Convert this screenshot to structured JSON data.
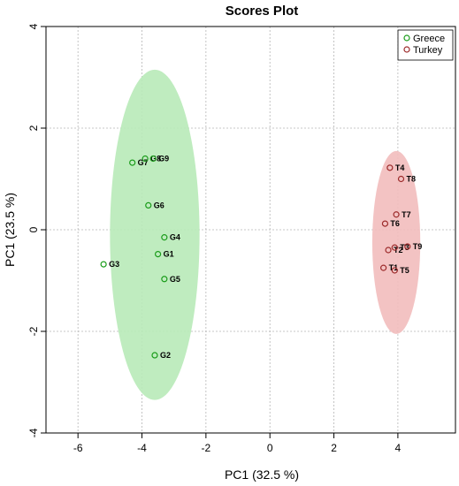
{
  "chart_data": {
    "type": "scatter",
    "title": "Scores Plot",
    "xlabel": "PC1 (32.5 %)",
    "ylabel": "PC1 (23.5 %)",
    "xlim": [
      -7,
      5.8
    ],
    "ylim": [
      -4,
      4
    ],
    "xticks": [
      -6,
      -4,
      -2,
      0,
      2,
      4
    ],
    "yticks": [
      -4,
      -2,
      0,
      2,
      4
    ],
    "grid": true,
    "legend": "top-right",
    "series": [
      {
        "name": "Greece",
        "color": "#1a9c1a",
        "ellipse_fill": "#b8eab8",
        "ellipse": {
          "cx": -3.6,
          "cy": -0.1,
          "rx": 1.4,
          "ry": 3.25
        },
        "points": [
          {
            "label": "G1",
            "x": -3.5,
            "y": -0.48
          },
          {
            "label": "G2",
            "x": -3.6,
            "y": -2.47
          },
          {
            "label": "G3",
            "x": -5.2,
            "y": -0.68
          },
          {
            "label": "G4",
            "x": -3.3,
            "y": -0.15
          },
          {
            "label": "G5",
            "x": -3.3,
            "y": -0.97
          },
          {
            "label": "G6",
            "x": -3.8,
            "y": 0.48
          },
          {
            "label": "G7",
            "x": -4.3,
            "y": 1.32
          },
          {
            "label": "G8",
            "x": -3.9,
            "y": 1.4
          },
          {
            "label": "G9",
            "x": -3.65,
            "y": 1.4
          }
        ]
      },
      {
        "name": "Turkey",
        "color": "#9c2a2a",
        "ellipse_fill": "#f2bcbc",
        "ellipse": {
          "cx": 3.95,
          "cy": -0.25,
          "rx": 0.75,
          "ry": 1.8
        },
        "points": [
          {
            "label": "T1",
            "x": 3.55,
            "y": -0.75
          },
          {
            "label": "T2",
            "x": 3.7,
            "y": -0.4
          },
          {
            "label": "T3",
            "x": 3.9,
            "y": -0.35
          },
          {
            "label": "T4",
            "x": 3.75,
            "y": 1.22
          },
          {
            "label": "T5",
            "x": 3.9,
            "y": -0.8
          },
          {
            "label": "T6",
            "x": 3.6,
            "y": 0.12
          },
          {
            "label": "T7",
            "x": 3.95,
            "y": 0.3
          },
          {
            "label": "T8",
            "x": 4.1,
            "y": 1.0
          },
          {
            "label": "T9",
            "x": 4.3,
            "y": -0.33
          }
        ]
      }
    ]
  }
}
